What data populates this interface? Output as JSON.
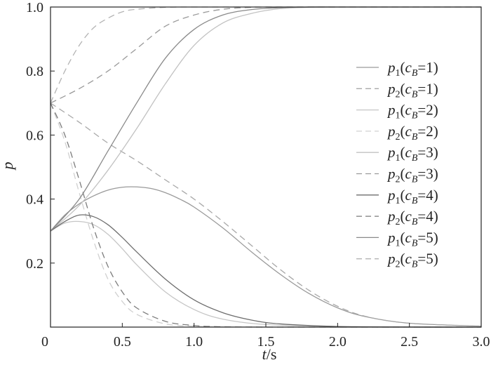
{
  "chart_data": {
    "type": "line",
    "xlabel": "t/s",
    "ylabel": "p",
    "xlim": [
      0,
      3.0
    ],
    "ylim": [
      0,
      1.0
    ],
    "x_ticks": [
      "0",
      "0.5",
      "1.0",
      "1.5",
      "2.0",
      "2.5",
      "3.0"
    ],
    "y_ticks": [
      "0.2",
      "0.4",
      "0.6",
      "0.8",
      "1.0"
    ],
    "grid": false,
    "legend_position": "right",
    "series": [
      {
        "name": "p1(cB=1)",
        "color": "#9a9a9a",
        "dash": "solid",
        "x": [
          0,
          0.1,
          0.2,
          0.3,
          0.4,
          0.5,
          0.6,
          0.7,
          0.8,
          0.9,
          1.0,
          1.2,
          1.4,
          1.6,
          1.8,
          2.0,
          2.2,
          2.5,
          3.0
        ],
        "y": [
          0.3,
          0.35,
          0.385,
          0.41,
          0.428,
          0.437,
          0.438,
          0.433,
          0.42,
          0.4,
          0.375,
          0.31,
          0.235,
          0.165,
          0.105,
          0.06,
          0.032,
          0.012,
          0.003
        ]
      },
      {
        "name": "p2(cB=1)",
        "color": "#a8a8a8",
        "dash": "dash",
        "x": [
          0,
          0.2,
          0.4,
          0.6,
          0.8,
          1.0,
          1.2,
          1.4,
          1.6,
          1.8,
          2.0,
          2.2,
          2.5,
          3.0
        ],
        "y": [
          0.7,
          0.64,
          0.575,
          0.52,
          0.46,
          0.4,
          0.33,
          0.255,
          0.18,
          0.115,
          0.065,
          0.033,
          0.012,
          0.003
        ]
      },
      {
        "name": "p1(cB=2)",
        "color": "#c6c6c6",
        "dash": "solid",
        "x": [
          0,
          0.1,
          0.2,
          0.3,
          0.4,
          0.5,
          0.6,
          0.8,
          1.0,
          1.2,
          1.5,
          2.0,
          2.5,
          3.0
        ],
        "y": [
          0.3,
          0.325,
          0.33,
          0.32,
          0.29,
          0.245,
          0.195,
          0.11,
          0.055,
          0.025,
          0.008,
          0.002,
          0.001,
          0.0
        ]
      },
      {
        "name": "p2(cB=2)",
        "color": "#d0d0d0",
        "dash": "dash",
        "x": [
          0,
          0.1,
          0.2,
          0.3,
          0.4,
          0.5,
          0.6,
          0.8,
          1.0,
          1.2,
          1.5,
          2.0,
          2.5,
          3.0
        ],
        "y": [
          0.7,
          0.58,
          0.42,
          0.27,
          0.15,
          0.08,
          0.04,
          0.01,
          0.003,
          0.001,
          0.0,
          0.0,
          0.0,
          0.0
        ]
      },
      {
        "name": "p1(cB=3)",
        "color": "#c2c2c2",
        "dash": "solid",
        "x": [
          0,
          0.2,
          0.4,
          0.6,
          0.8,
          1.0,
          1.2,
          1.4,
          1.6,
          1.8,
          2.0,
          2.5,
          3.0
        ],
        "y": [
          0.3,
          0.38,
          0.49,
          0.62,
          0.76,
          0.88,
          0.95,
          0.98,
          0.995,
          0.999,
          1.0,
          1.0,
          1.0
        ]
      },
      {
        "name": "p2(cB=3)",
        "color": "#9a9a9a",
        "dash": "dash",
        "x": [
          0,
          0.2,
          0.4,
          0.6,
          0.8,
          1.0,
          1.2,
          1.4,
          1.6,
          2.0,
          2.5,
          3.0
        ],
        "y": [
          0.7,
          0.745,
          0.8,
          0.87,
          0.94,
          0.975,
          0.993,
          0.999,
          1.0,
          1.0,
          1.0,
          1.0
        ]
      },
      {
        "name": "p1(cB=4)",
        "color": "#6e6e6e",
        "dash": "solid",
        "x": [
          0,
          0.1,
          0.2,
          0.3,
          0.4,
          0.5,
          0.6,
          0.8,
          1.0,
          1.2,
          1.4,
          1.6,
          2.0,
          2.5,
          3.0
        ],
        "y": [
          0.3,
          0.33,
          0.35,
          0.345,
          0.32,
          0.28,
          0.235,
          0.15,
          0.085,
          0.045,
          0.022,
          0.01,
          0.002,
          0.0,
          0.0
        ]
      },
      {
        "name": "p2(cB=4)",
        "color": "#7c7c7c",
        "dash": "dash",
        "x": [
          0,
          0.1,
          0.2,
          0.3,
          0.4,
          0.5,
          0.6,
          0.8,
          1.0,
          1.2,
          1.5,
          2.0,
          2.5,
          3.0
        ],
        "y": [
          0.7,
          0.6,
          0.46,
          0.31,
          0.19,
          0.11,
          0.06,
          0.018,
          0.005,
          0.001,
          0.0,
          0.0,
          0.0,
          0.0
        ]
      },
      {
        "name": "p1(cB=5)",
        "color": "#8a8a8a",
        "dash": "solid",
        "x": [
          0,
          0.2,
          0.4,
          0.6,
          0.8,
          1.0,
          1.2,
          1.4,
          1.6,
          1.8,
          2.0,
          2.5,
          3.0
        ],
        "y": [
          0.3,
          0.4,
          0.55,
          0.7,
          0.84,
          0.93,
          0.975,
          0.992,
          0.998,
          1.0,
          1.0,
          1.0,
          1.0
        ]
      },
      {
        "name": "p2(cB=5)",
        "color": "#b4b4b4",
        "dash": "dash",
        "x": [
          0,
          0.1,
          0.2,
          0.3,
          0.4,
          0.5,
          0.6,
          0.8,
          1.0,
          1.5,
          2.0,
          3.0
        ],
        "y": [
          0.7,
          0.8,
          0.88,
          0.935,
          0.965,
          0.985,
          0.993,
          0.999,
          1.0,
          1.0,
          1.0,
          1.0
        ]
      }
    ],
    "legend": [
      {
        "main": "p",
        "sub_index": "1",
        "open": "(c",
        "sub_var": "B",
        "close": "=1)"
      },
      {
        "main": "p",
        "sub_index": "2",
        "open": "(c",
        "sub_var": "B",
        "close": "=1)"
      },
      {
        "main": "p",
        "sub_index": "1",
        "open": "(c",
        "sub_var": "B",
        "close": "=2)"
      },
      {
        "main": "p",
        "sub_index": "2",
        "open": "(c",
        "sub_var": "B",
        "close": "=2)"
      },
      {
        "main": "p",
        "sub_index": "1",
        "open": "(c",
        "sub_var": "B",
        "close": "=3)"
      },
      {
        "main": "p",
        "sub_index": "2",
        "open": "(c",
        "sub_var": "B",
        "close": "=3)"
      },
      {
        "main": "p",
        "sub_index": "1",
        "open": "(c",
        "sub_var": "B",
        "close": "=4)"
      },
      {
        "main": "p",
        "sub_index": "2",
        "open": "(c",
        "sub_var": "B",
        "close": "=4)"
      },
      {
        "main": "p",
        "sub_index": "1",
        "open": "(c",
        "sub_var": "B",
        "close": "=5)"
      },
      {
        "main": "p",
        "sub_index": "2",
        "open": "(c",
        "sub_var": "B",
        "close": "=5)"
      }
    ]
  }
}
